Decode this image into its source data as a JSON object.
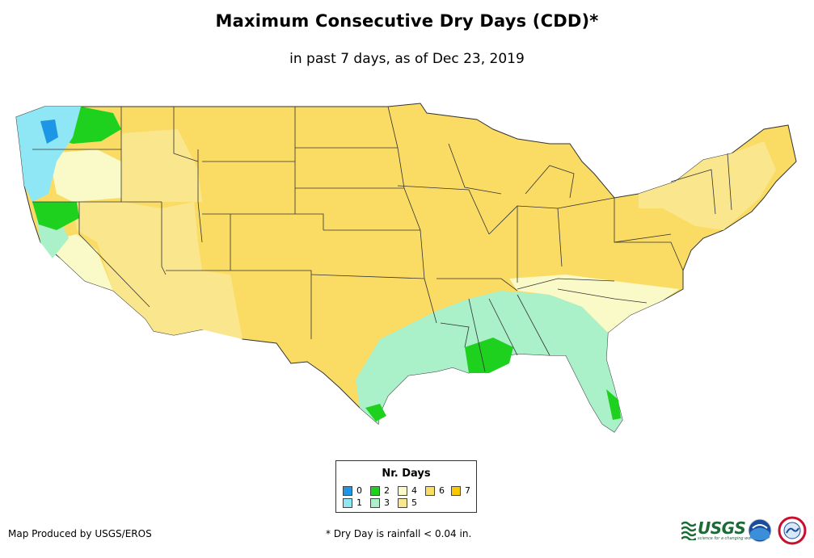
{
  "title": "Maximum Consecutive Dry Days (CDD)*",
  "subtitle": "in past 7 days, as of Dec 23, 2019",
  "legend": {
    "title": "Nr. Days",
    "items": [
      {
        "label": "0",
        "color": "#1e96e6"
      },
      {
        "label": "1",
        "color": "#8fe6f5"
      },
      {
        "label": "2",
        "color": "#1fd11f"
      },
      {
        "label": "3",
        "color": "#aaf0c8"
      },
      {
        "label": "4",
        "color": "#fafac8"
      },
      {
        "label": "5",
        "color": "#fae68c"
      },
      {
        "label": "6",
        "color": "#fadc64"
      },
      {
        "label": "7",
        "color": "#fac800"
      }
    ]
  },
  "footer": {
    "credit": "Map Produced by USGS/EROS",
    "note": "* Dry Day is rainfall < 0.04 in."
  },
  "logos": {
    "usgs": "USGS",
    "usgs_tagline": "science for a changing world"
  }
}
